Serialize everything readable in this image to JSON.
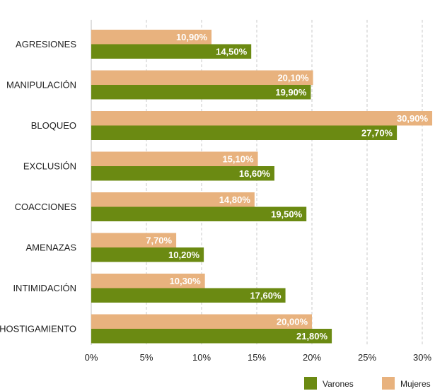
{
  "chart_data": {
    "type": "bar",
    "orientation": "horizontal",
    "categories": [
      "AGRESIONES",
      "MANIPULACIÓN",
      "BLOQUEO",
      "EXCLUSIÓN",
      "COACCIONES",
      "AMENAZAS",
      "INTIMIDACIÓN",
      "HOSTIGAMIENTO"
    ],
    "series": [
      {
        "name": "Mujeres",
        "color": "#E8B27E",
        "values": [
          10.9,
          20.1,
          30.9,
          15.1,
          14.8,
          7.7,
          10.3,
          20.0
        ],
        "labels": [
          "10,90%",
          "20,10%",
          "30,90%",
          "15,10%",
          "14,80%",
          "7,70%",
          "10,30%",
          "20,00%"
        ]
      },
      {
        "name": "Varones",
        "color": "#6B8A12",
        "values": [
          14.5,
          19.9,
          27.7,
          16.6,
          19.5,
          10.2,
          17.6,
          21.8
        ],
        "labels": [
          "14,50%",
          "19,90%",
          "27,70%",
          "16,60%",
          "19,50%",
          "10,20%",
          "17,60%",
          "21,80%"
        ]
      }
    ],
    "xlim": [
      0,
      30
    ],
    "xticks": [
      0,
      5,
      10,
      15,
      20,
      25,
      30
    ],
    "xtick_labels": [
      "0%",
      "5%",
      "10%",
      "15%",
      "20%",
      "25%",
      "30%"
    ],
    "grid": "vertical dashed",
    "legend": {
      "placement": "bottom-right",
      "order": [
        "Varones",
        "Mujeres"
      ]
    },
    "title": "",
    "xlabel": "",
    "ylabel": ""
  }
}
